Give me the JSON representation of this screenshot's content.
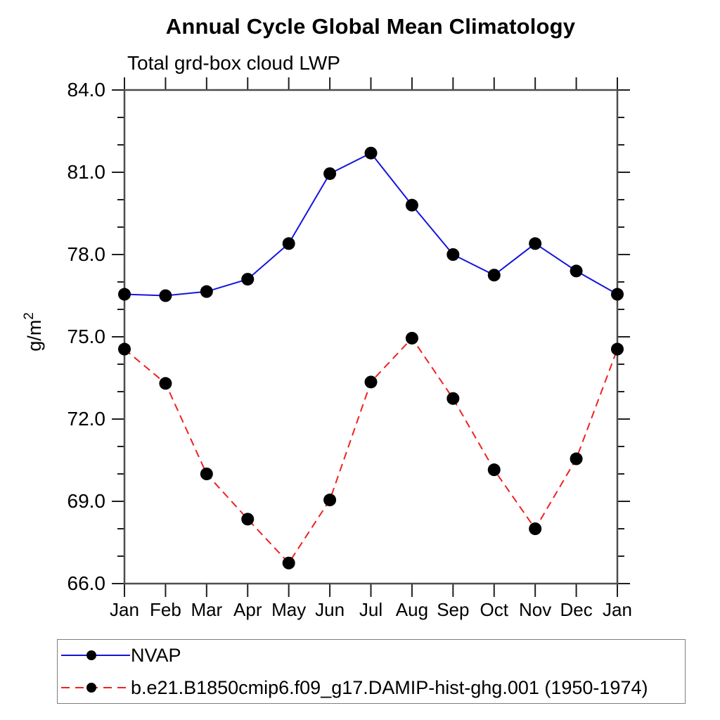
{
  "chart": {
    "title": "Annual Cycle Global Mean Climatology",
    "subtitle": "Total grd-box cloud LWP"
  },
  "chart_data": {
    "type": "line",
    "title": "Annual Cycle Global Mean Climatology",
    "subtitle": "Total grd-box cloud LWP",
    "xlabel": "",
    "ylabel": "g/m²",
    "ylim": [
      66.0,
      84.0
    ],
    "ytick_major": [
      {
        "value": 66,
        "label": "66.0"
      },
      {
        "value": 69,
        "label": "69.0"
      },
      {
        "value": 72,
        "label": "72.0"
      },
      {
        "value": 75,
        "label": "75.0"
      },
      {
        "value": 78,
        "label": "78.0"
      },
      {
        "value": 81,
        "label": "81.0"
      },
      {
        "value": 84,
        "label": "84.0"
      }
    ],
    "ytick_minor_step": 1.0,
    "categories": [
      "Jan",
      "Feb",
      "Mar",
      "Apr",
      "May",
      "Jun",
      "Jul",
      "Aug",
      "Sep",
      "Oct",
      "Nov",
      "Dec",
      "Jan"
    ],
    "grid": false,
    "legend_position": "bottom-left boxed",
    "axis_color": "#4d4d4d",
    "tick_color": "#1f1f1f",
    "marker": "filled-circle",
    "marker_color": "#000000",
    "series": [
      {
        "name": "NVAP",
        "color": "#1414dd",
        "line_style": "solid",
        "values": [
          76.55,
          76.5,
          76.65,
          77.1,
          78.4,
          80.95,
          81.7,
          79.8,
          78.0,
          77.25,
          78.4,
          77.4,
          76.55
        ]
      },
      {
        "name": "b.e21.B1850cmip6.f09_g17.DAMIP-hist-ghg.001 (1950-1974)",
        "color": "#f02020",
        "line_style": "dashed",
        "values": [
          74.55,
          73.3,
          70.0,
          68.35,
          66.75,
          69.05,
          73.35,
          74.95,
          72.75,
          70.15,
          68.0,
          70.55,
          74.55
        ]
      }
    ]
  }
}
